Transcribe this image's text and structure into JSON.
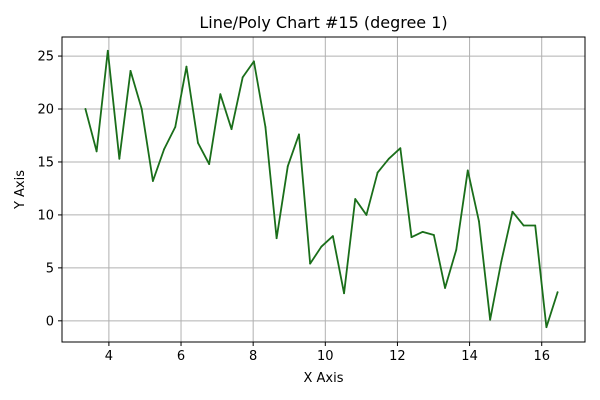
{
  "chart_data": {
    "type": "line",
    "title": "Line/Poly Chart #15 (degree 1)",
    "xlabel": "X Axis",
    "ylabel": "Y Axis",
    "xlim": [
      2.7,
      17.2
    ],
    "ylim": [
      -2,
      26.8
    ],
    "xticks": [
      4,
      6,
      8,
      10,
      12,
      14,
      16
    ],
    "yticks": [
      0,
      5,
      10,
      15,
      20,
      25
    ],
    "grid": true,
    "series": [
      {
        "color": "#1a6e1a",
        "x": [
          3.35,
          3.66,
          3.97,
          4.29,
          4.6,
          4.91,
          5.22,
          5.53,
          5.84,
          6.15,
          6.47,
          6.78,
          7.09,
          7.4,
          7.71,
          8.02,
          8.34,
          8.65,
          8.96,
          9.27,
          9.58,
          9.89,
          10.21,
          10.52,
          10.83,
          11.14,
          11.45,
          11.76,
          12.08,
          12.39,
          12.7,
          13.01,
          13.32,
          13.63,
          13.95,
          14.26,
          14.57,
          14.88,
          15.19,
          15.5,
          15.82,
          16.13,
          16.44
        ],
        "y": [
          20.0,
          16.0,
          25.5,
          15.3,
          23.6,
          20.0,
          13.2,
          16.2,
          18.3,
          24.0,
          16.8,
          14.8,
          21.4,
          18.1,
          23.0,
          24.5,
          18.3,
          7.8,
          14.6,
          17.6,
          5.4,
          7.0,
          8.0,
          2.6,
          11.5,
          10.0,
          14.0,
          15.3,
          16.3,
          7.9,
          8.4,
          8.1,
          3.1,
          6.7,
          14.2,
          9.4,
          0.1,
          5.6,
          10.3,
          9.0,
          9.0,
          -0.6,
          2.7
        ]
      }
    ]
  }
}
